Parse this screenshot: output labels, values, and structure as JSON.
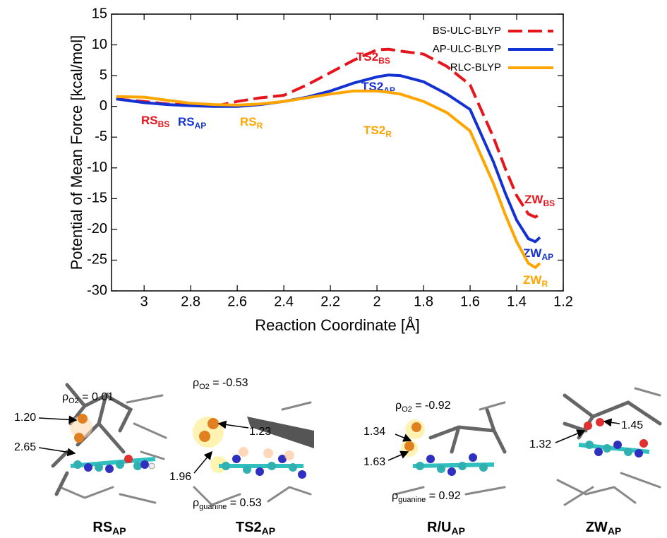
{
  "chart_data": {
    "type": "line",
    "xlabel": "Reaction Coordinate [Å]",
    "ylabel": "Potential of Mean Force [kcal/mol]",
    "x": [
      3.12,
      3.0,
      2.9,
      2.8,
      2.7,
      2.6,
      2.5,
      2.4,
      2.3,
      2.2,
      2.1,
      2.0,
      1.95,
      1.9,
      1.8,
      1.7,
      1.6,
      1.5,
      1.45,
      1.4,
      1.35,
      1.32,
      1.3
    ],
    "series": [
      {
        "name": "BS-ULC-BLYP",
        "color": "#e8141c",
        "dashed": true,
        "values": [
          1.2,
          0.8,
          0.4,
          0.2,
          0,
          0.8,
          1.4,
          1.8,
          3.5,
          5.5,
          7.5,
          9.2,
          9.3,
          9,
          8.5,
          6.5,
          3.5,
          -5,
          -10,
          -14.5,
          -17.5,
          -18,
          -17.5
        ]
      },
      {
        "name": "AP-ULC-BLYP",
        "color": "#1432d2",
        "dashed": false,
        "values": [
          1.2,
          0.6,
          0.3,
          0.1,
          0,
          0,
          0.3,
          0.8,
          1.5,
          2.5,
          3.8,
          4.8,
          5.1,
          5,
          4,
          2,
          -0.5,
          -9,
          -14,
          -18.5,
          -21.5,
          -22,
          -21.3
        ]
      },
      {
        "name": "RLC-BLYP",
        "color": "#ffa500",
        "dashed": false,
        "values": [
          1.6,
          1.5,
          1.0,
          0.5,
          0.3,
          0.2,
          0.4,
          0.8,
          1.4,
          2.0,
          2.5,
          2.5,
          2.3,
          2.0,
          0.8,
          -1,
          -4,
          -12.5,
          -17.5,
          -22,
          -25.5,
          -26.2,
          -25.5
        ]
      }
    ],
    "xlim": [
      3.14,
      1.2
    ],
    "xticks": [
      3,
      2.8,
      2.6,
      2.4,
      2.2,
      2,
      1.8,
      1.6,
      1.4,
      1.2
    ],
    "ylim": [
      -30,
      15
    ],
    "yticks": [
      -30,
      -25,
      -20,
      -15,
      -10,
      -5,
      0,
      5,
      10,
      15
    ],
    "legend": "upper right",
    "annotations": [
      {
        "text": "TS2",
        "sub": "BS"
      },
      {
        "text": "TS2",
        "sub": "AP"
      },
      {
        "text": "TS2",
        "sub": "R"
      },
      {
        "text": "RS",
        "sub": "BS"
      },
      {
        "text": "RS",
        "sub": "AP"
      },
      {
        "text": "RS",
        "sub": "R"
      },
      {
        "text": "ZW",
        "sub": "BS"
      },
      {
        "text": "ZW",
        "sub": "AP"
      },
      {
        "text": "ZW",
        "sub": "R"
      }
    ]
  },
  "panels": [
    {
      "title": "RS",
      "title_sub": "AP",
      "rho": [
        {
          "symbol": "ρ",
          "sub": "O2",
          "rest": " = 0.01"
        }
      ],
      "distances": [
        "1.20",
        "2.65"
      ]
    },
    {
      "title": "TS2",
      "title_sub": "AP",
      "rho": [
        {
          "symbol": "ρ",
          "sub": "O2",
          "rest": " = -0.53"
        },
        {
          "symbol": "ρ",
          "sub": "guanine",
          "rest": " = 0.53"
        }
      ],
      "distances": [
        "1.23",
        "1.96"
      ]
    },
    {
      "title": "R/U",
      "title_sub": "AP",
      "rho": [
        {
          "symbol": "ρ",
          "sub": "O2",
          "rest": " = -0.92"
        },
        {
          "symbol": "ρ",
          "sub": "guanine",
          "rest": " = 0.92"
        }
      ],
      "distances": [
        "1.34",
        "1.63"
      ]
    },
    {
      "title": "ZW",
      "title_sub": "AP",
      "distances": [
        "1.45",
        "1.32"
      ]
    }
  ]
}
